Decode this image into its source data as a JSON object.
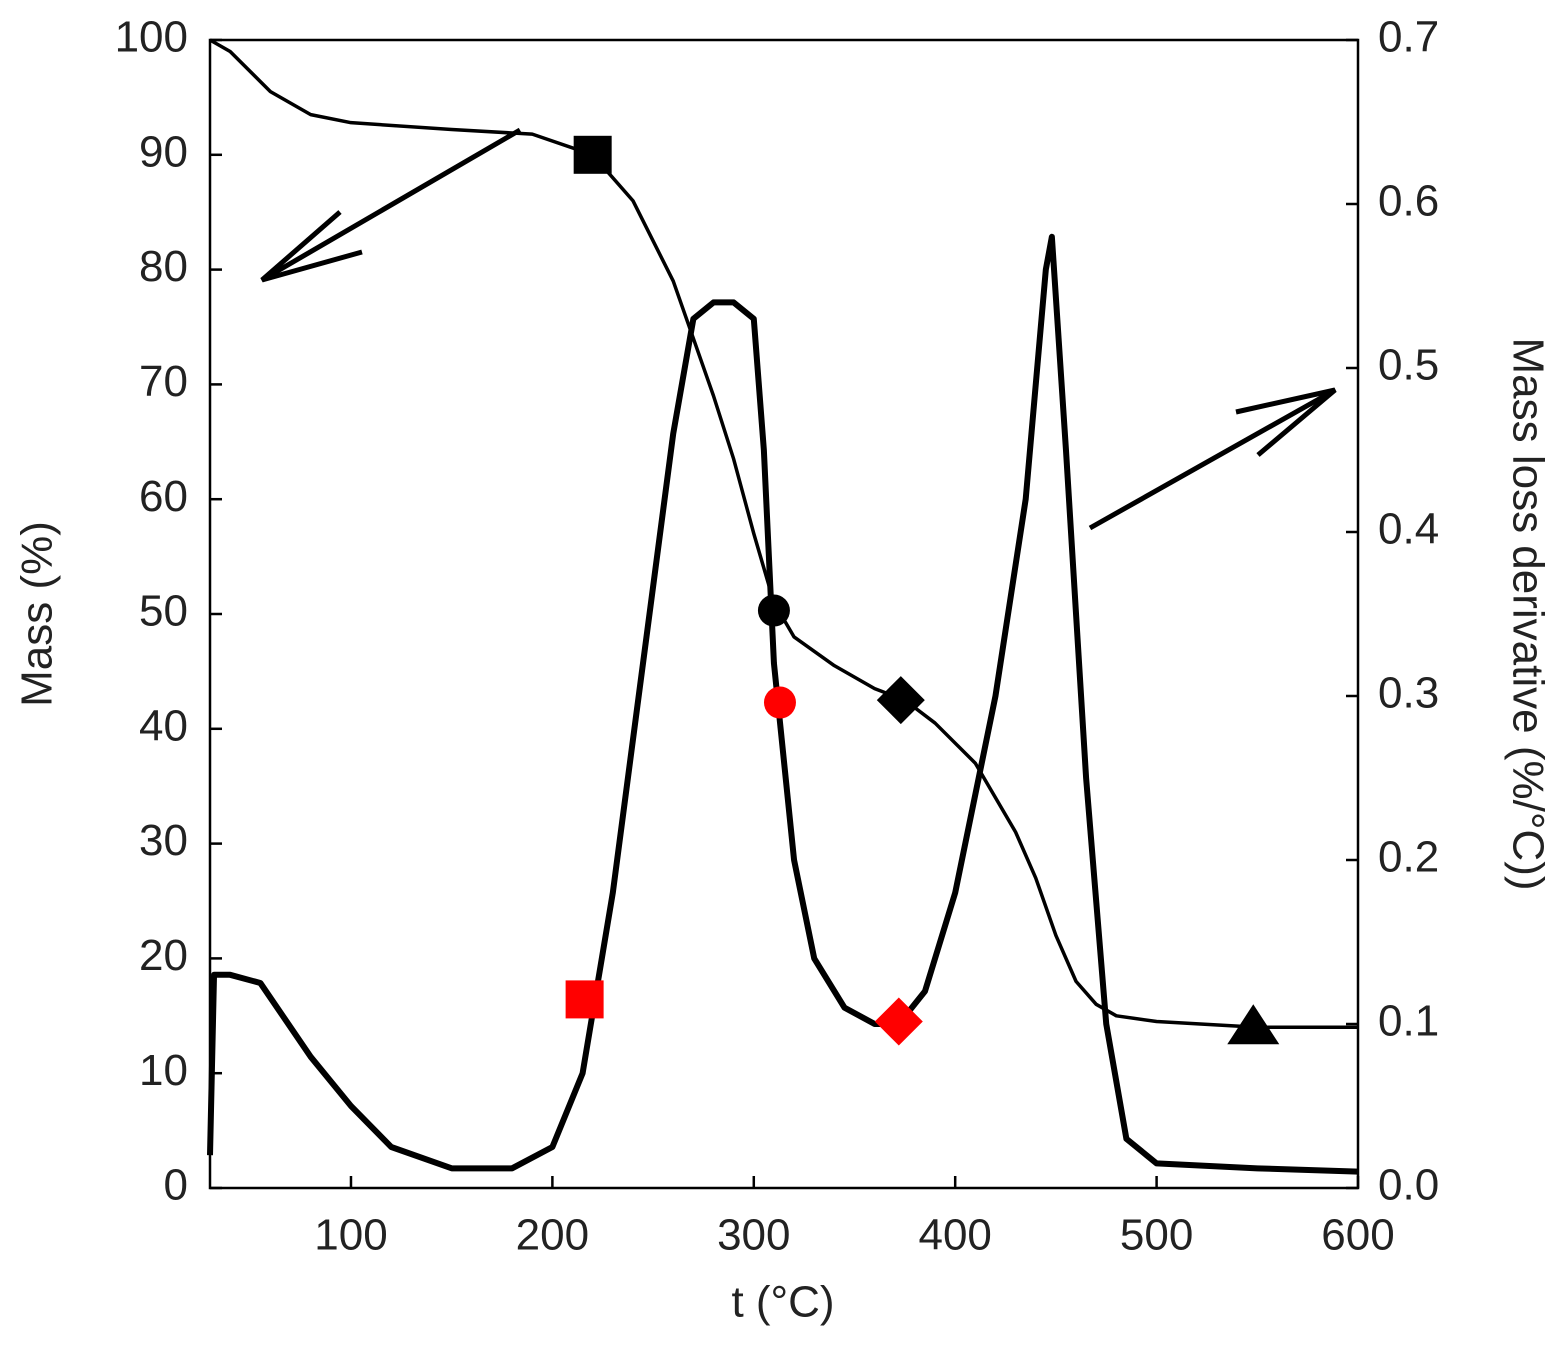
{
  "chart_data": {
    "type": "line",
    "xlabel": "t (°C)",
    "ylabel": "Mass (%)",
    "y2label": "Mass loss derivative (%/°C))",
    "xlim": [
      30,
      600
    ],
    "xticks": [
      100,
      200,
      300,
      400,
      500,
      600
    ],
    "ylim": [
      0,
      100
    ],
    "yticks": [
      0,
      10,
      20,
      30,
      40,
      50,
      60,
      70,
      80,
      90,
      100
    ],
    "y2lim": [
      0,
      0.7
    ],
    "y2ticks": [
      {
        "value": 0,
        "label": "0.0"
      },
      0.1,
      0.2,
      0.3,
      0.4,
      0.5,
      0.6,
      0.7
    ],
    "series": [
      {
        "axis": "y",
        "color": "#000000",
        "x": [
          30,
          40,
          60,
          80,
          100,
          150,
          190,
          220,
          240,
          260,
          270,
          280,
          290,
          300,
          310,
          320,
          340,
          360,
          375,
          390,
          410,
          430,
          440,
          450,
          460,
          470,
          480,
          500,
          550,
          600
        ],
        "values": [
          100,
          99,
          95.5,
          93.5,
          92.8,
          92.2,
          91.8,
          90,
          86,
          79,
          74,
          69,
          63.5,
          57,
          51,
          48,
          45.5,
          43.5,
          42.5,
          40.5,
          37,
          31,
          27,
          22,
          18,
          16,
          15,
          14.5,
          14,
          14
        ]
      },
      {
        "axis": "y2",
        "color": "#000000",
        "x": [
          30,
          32,
          40,
          55,
          80,
          100,
          120,
          150,
          180,
          200,
          215,
          230,
          245,
          260,
          270,
          280,
          290,
          300,
          305,
          310,
          320,
          330,
          345,
          360,
          372,
          385,
          400,
          420,
          435,
          445,
          448,
          455,
          465,
          475,
          485,
          500,
          550,
          600
        ],
        "values": [
          0.02,
          0.13,
          0.13,
          0.125,
          0.08,
          0.05,
          0.025,
          0.012,
          0.012,
          0.025,
          0.07,
          0.18,
          0.32,
          0.46,
          0.53,
          0.54,
          0.54,
          0.53,
          0.45,
          0.32,
          0.2,
          0.14,
          0.11,
          0.1,
          0.1,
          0.12,
          0.18,
          0.3,
          0.42,
          0.56,
          0.58,
          0.45,
          0.25,
          0.1,
          0.03,
          0.015,
          0.012,
          0.01
        ]
      }
    ],
    "markers": [
      {
        "x": 220,
        "y": 90,
        "axis": "y",
        "shape": "square",
        "color": "#000000"
      },
      {
        "x": 310,
        "y": 50.3,
        "axis": "y",
        "shape": "circle",
        "color": "#000000"
      },
      {
        "x": 373,
        "y": 42.5,
        "axis": "y",
        "shape": "diamond",
        "color": "#000000"
      },
      {
        "x": 548,
        "y": 14,
        "axis": "y",
        "shape": "triangle",
        "color": "#000000"
      },
      {
        "x": 216,
        "y": 0.115,
        "axis": "y2",
        "shape": "square",
        "color": "#ff0000"
      },
      {
        "x": 313,
        "y": 0.296,
        "axis": "y2",
        "shape": "circle",
        "color": "#ff0000"
      },
      {
        "x": 372,
        "y": 0.1015,
        "axis": "y2",
        "shape": "diamond",
        "color": "#ff0000"
      }
    ]
  }
}
